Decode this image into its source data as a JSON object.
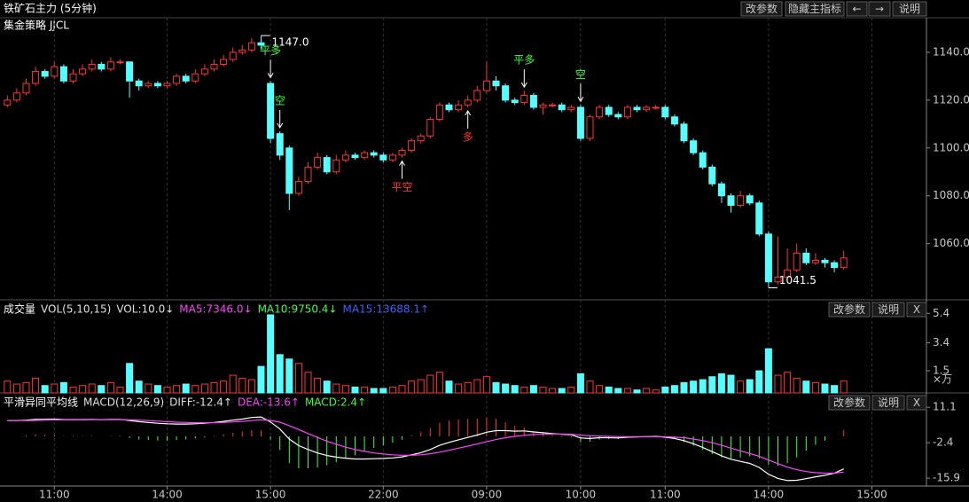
{
  "toolbar": [
    "改参数",
    "隐藏主指标",
    "←",
    "→",
    "说明"
  ],
  "chart_data": [
    {
      "type": "candlestick",
      "title": "铁矿石主力 (5分钟)",
      "subtitle": "集金策略 JJCL",
      "up_color": "#ff3232",
      "down_color": "#54ffff",
      "categories": [
        null,
        null,
        null,
        null,
        null,
        "11:00",
        null,
        null,
        null,
        null,
        null,
        null,
        null,
        null,
        null,
        null,
        null,
        "14:00",
        null,
        null,
        null,
        null,
        null,
        null,
        null,
        null,
        null,
        null,
        "15:00",
        null,
        null,
        null,
        null,
        null,
        null,
        null,
        null,
        null,
        null,
        null,
        "22:00",
        null,
        null,
        null,
        null,
        null,
        null,
        null,
        null,
        null,
        null,
        "09:00",
        null,
        null,
        null,
        null,
        null,
        null,
        null,
        null,
        null,
        "10:00",
        null,
        null,
        null,
        null,
        null,
        null,
        null,
        null,
        "11:00",
        null,
        null,
        null,
        null,
        null,
        null,
        null,
        null,
        null,
        null,
        "14:00",
        null,
        null,
        null,
        null,
        null,
        null,
        null,
        null,
        null,
        null,
        "15:00"
      ],
      "open": [
        1118,
        1120,
        1123,
        1127,
        1132,
        1130,
        1134,
        1128,
        1131,
        1133,
        1135,
        1133,
        1136,
        1136,
        1128,
        1126,
        1127,
        1126,
        1127,
        1130,
        1128,
        1131,
        1133,
        1135,
        1137,
        1140,
        1141,
        1144,
        1127,
        1106,
        1100,
        1081,
        1086,
        1092,
        1096,
        1090,
        1095,
        1097,
        1096,
        1098,
        1097,
        1095,
        1097,
        1099,
        1103,
        1105,
        1112,
        1118,
        1116,
        1118,
        1120,
        1124,
        1128,
        1126,
        1120,
        1119,
        1122,
        1117,
        1118,
        1118,
        1116,
        1117,
        1104,
        1113,
        1117,
        1114,
        1113,
        1117,
        1116,
        1117,
        1117,
        1113,
        1110,
        1103,
        1098,
        1092,
        1085,
        1080,
        1076,
        1080,
        1077,
        1064,
        1044,
        1046,
        1049,
        1056,
        1052,
        1053,
        1052,
        1050,
        null,
        null,
        null
      ],
      "close": [
        1120,
        1123,
        1127,
        1132,
        1130,
        1134,
        1128,
        1131,
        1133,
        1135,
        1133,
        1136,
        1136,
        1128,
        1126,
        1127,
        1126,
        1127,
        1130,
        1128,
        1131,
        1133,
        1135,
        1137,
        1140,
        1141,
        1144,
        1143,
        1104,
        1097,
        1081,
        1086,
        1092,
        1096,
        1090,
        1095,
        1097,
        1096,
        1098,
        1097,
        1095,
        1097,
        1099,
        1103,
        1105,
        1112,
        1118,
        1116,
        1118,
        1120,
        1124,
        1128,
        1126,
        1120,
        1119,
        1122,
        1117,
        1118,
        1118,
        1116,
        1117,
        1104,
        1113,
        1117,
        1114,
        1113,
        1117,
        1116,
        1117,
        1117,
        1113,
        1110,
        1103,
        1098,
        1092,
        1085,
        1080,
        1076,
        1080,
        1077,
        1064,
        1044,
        1046,
        1049,
        1056,
        1052,
        1053,
        1052,
        1050,
        1054,
        null,
        null,
        null
      ],
      "high": [
        1122,
        1125,
        1129,
        1134,
        1133,
        1136,
        1135,
        1133,
        1135,
        1137,
        1136,
        1138,
        1137,
        1136,
        1129,
        1128,
        1128,
        1128,
        1131,
        1131,
        1133,
        1135,
        1137,
        1139,
        1142,
        1143,
        1146,
        1147,
        1128,
        1107,
        1101,
        1088,
        1094,
        1098,
        1097,
        1097,
        1099,
        1098,
        1099,
        1099,
        1098,
        1098,
        1100,
        1104,
        1106,
        1113,
        1119,
        1119,
        1120,
        1122,
        1126,
        1136,
        1130,
        1127,
        1121,
        1124,
        1123,
        1119,
        1119,
        1119,
        1118,
        1118,
        1114,
        1118,
        1118,
        1115,
        1118,
        1118,
        1118,
        1118,
        1118,
        1114,
        1111,
        1104,
        1099,
        1093,
        1086,
        1081,
        1082,
        1081,
        1078,
        1065,
        1063,
        1058,
        1060,
        1058,
        1056,
        1054,
        1053,
        1057,
        null,
        null,
        null
      ],
      "low": [
        1117,
        1119,
        1122,
        1126,
        1129,
        1129,
        1127,
        1127,
        1130,
        1132,
        1132,
        1132,
        1135,
        1121,
        1124,
        1125,
        1125,
        1125,
        1126,
        1127,
        1127,
        1130,
        1132,
        1134,
        1136,
        1139,
        1140,
        1141,
        1102,
        1095,
        1074,
        1080,
        1085,
        1091,
        1089,
        1089,
        1094,
        1095,
        1095,
        1096,
        1094,
        1094,
        1096,
        1098,
        1102,
        1104,
        1111,
        1115,
        1115,
        1117,
        1119,
        1123,
        1124,
        1119,
        1118,
        1118,
        1116,
        1114,
        1117,
        1115,
        1115,
        1103,
        1103,
        1112,
        1113,
        1112,
        1112,
        1115,
        1115,
        1116,
        1112,
        1109,
        1102,
        1097,
        1091,
        1084,
        1077,
        1073,
        1075,
        1076,
        1063,
        1041.5,
        1043,
        1045,
        1048,
        1051,
        1051,
        1050,
        1048,
        1049,
        null,
        null,
        null
      ],
      "ylim": [
        1036.5,
        1151.5
      ],
      "yticks": [
        {
          "value": 1060,
          "label": "1060.0"
        },
        {
          "value": 1080,
          "label": "1080.0"
        },
        {
          "value": 1100,
          "label": "1100.0"
        },
        {
          "value": 1120,
          "label": "1120.0"
        },
        {
          "value": 1140,
          "label": "1140.0"
        }
      ],
      "annotations": [
        {
          "index": 27,
          "value": 1147,
          "label": "1147.0"
        },
        {
          "index": 81,
          "value": 1041.5,
          "label": "1041.5"
        }
      ],
      "signals": [
        {
          "label": "平多",
          "index": 28,
          "color": "#3cff3c",
          "arrow": "down"
        },
        {
          "label": "空",
          "index": 29,
          "color": "#3cff3c",
          "arrow": "down"
        },
        {
          "label": "平空",
          "index": 42,
          "color": "#ff3232",
          "arrow": "up"
        },
        {
          "label": "多",
          "index": 49,
          "color": "#ff3232",
          "arrow": "up"
        },
        {
          "label": "平多",
          "index": 55,
          "color": "#3cff3c",
          "arrow": "down"
        },
        {
          "label": "空",
          "index": 61,
          "color": "#3cff3c",
          "arrow": "down"
        }
      ]
    },
    {
      "type": "bar",
      "title": "成交量",
      "indicators": [
        {
          "label": "VOL(5,10,15)",
          "color": "#e0e0e0"
        },
        {
          "label": "VOL:10.0↓",
          "color": "#e0e0e0"
        },
        {
          "label": "MA5:7346.0↓",
          "color": "#ff40ff"
        },
        {
          "label": "MA10:9750.4↓",
          "color": "#3cff3c"
        },
        {
          "label": "MA15:13688.1↑",
          "color": "#4060ff"
        }
      ],
      "buttons": [
        "改参数",
        "说明",
        "X"
      ],
      "unit": "×万",
      "values": [
        0.8,
        0.6,
        0.7,
        1.0,
        0.5,
        0.6,
        0.7,
        0.4,
        0.5,
        0.6,
        0.5,
        0.7,
        0.4,
        2.0,
        0.8,
        0.6,
        0.5,
        0.4,
        0.5,
        0.6,
        0.5,
        0.6,
        0.7,
        0.8,
        1.2,
        1.0,
        0.9,
        1.8,
        5.3,
        2.6,
        2.3,
        2.0,
        1.4,
        1.0,
        0.8,
        0.6,
        0.5,
        0.4,
        0.4,
        0.3,
        0.3,
        0.4,
        0.5,
        0.8,
        0.9,
        1.2,
        1.4,
        0.8,
        0.6,
        0.7,
        0.9,
        1.1,
        0.7,
        0.6,
        0.5,
        0.4,
        0.5,
        0.4,
        0.3,
        0.3,
        0.4,
        1.3,
        0.8,
        0.5,
        0.4,
        0.3,
        0.3,
        0.2,
        0.3,
        0.2,
        0.4,
        0.5,
        0.7,
        0.8,
        0.9,
        1.1,
        1.3,
        1.2,
        0.8,
        0.9,
        1.5,
        3.0,
        1.2,
        1.4,
        1.0,
        0.8,
        0.7,
        0.6,
        0.5,
        0.8,
        null,
        null,
        null
      ],
      "ylim": [
        0,
        5.9
      ],
      "yticks": [
        1.5,
        3.4,
        5.4
      ]
    },
    {
      "type": "macd",
      "title": "平滑异同平均线",
      "indicators": [
        {
          "label": "MACD(12,26,9)",
          "color": "#e0e0e0"
        },
        {
          "label": "DIFF:-12.4↑",
          "color": "#e0e0e0"
        },
        {
          "label": "DEA:-13.6↑",
          "color": "#ff40ff"
        },
        {
          "label": "MACD:2.4↑",
          "color": "#3cff3c"
        }
      ],
      "buttons": [
        "改参数",
        "说明",
        "X"
      ],
      "up_color": "#ff3232",
      "down_color": "#3cff3c",
      "values": [
        0,
        0,
        0.4,
        0.8,
        0.6,
        0.6,
        0.2,
        0.2,
        0.2,
        0.2,
        0,
        0.2,
        0.2,
        -0.6,
        -1.2,
        -1.4,
        -1.6,
        -1.6,
        -1.4,
        -1.2,
        -0.8,
        -0.4,
        0.2,
        0.8,
        1.4,
        1.8,
        2.4,
        2.2,
        -1.2,
        -5.2,
        -10.2,
        -12.2,
        -12.2,
        -11.8,
        -11,
        -9.8,
        -8.4,
        -7.2,
        -5.8,
        -4.4,
        -3.4,
        -2.4,
        -1.2,
        0.4,
        1.6,
        3.2,
        5.2,
        6,
        6.4,
        6.6,
        6.8,
        7.2,
        6.8,
        5.4,
        4,
        3.4,
        2,
        1.2,
        0.4,
        -0.2,
        -0.4,
        -2.2,
        -2,
        -1.2,
        -1,
        -1,
        -0.4,
        -0.2,
        0,
        0.2,
        -0.4,
        -1,
        -2.2,
        -3.6,
        -5.2,
        -6.8,
        -8,
        -8.4,
        -8,
        -7.6,
        -8.4,
        -10.8,
        -11.2,
        -10.2,
        -8,
        -5.4,
        -3.2,
        -1.6,
        0,
        2.4,
        null,
        null,
        null
      ],
      "series": [
        {
          "color": "#ffffff",
          "values": [
            6,
            6,
            6.2,
            6.5,
            6.5,
            6.6,
            6.4,
            6.4,
            6.4,
            6.5,
            6.4,
            6.5,
            6.5,
            6,
            5.6,
            5.3,
            5,
            4.8,
            4.7,
            4.7,
            4.8,
            5,
            5.3,
            5.7,
            6.2,
            6.6,
            7.2,
            7.4,
            5.5,
            2.8,
            -1,
            -3.5,
            -5,
            -6.3,
            -7.3,
            -7.9,
            -8.3,
            -8.6,
            -8.6,
            -8.5,
            -8.4,
            -8.2,
            -7.8,
            -7,
            -6.2,
            -5,
            -3.4,
            -2.3,
            -1.3,
            -0.4,
            0.5,
            1.6,
            2.2,
            2.2,
            2,
            2.1,
            1.7,
            1.4,
            1.1,
            0.8,
            0.6,
            -0.6,
            -0.8,
            -0.5,
            -0.5,
            -0.6,
            -0.3,
            -0.2,
            -0.1,
            0,
            -0.3,
            -0.8,
            -1.6,
            -2.8,
            -4.2,
            -5.8,
            -7.4,
            -8.7,
            -9.5,
            -10.3,
            -11.8,
            -14.4,
            -16,
            -16.8,
            -16.7,
            -16.1,
            -15.4,
            -14.8,
            -14,
            -12.4,
            null,
            null,
            null
          ]
        },
        {
          "color": "#ff40ff",
          "values": [
            6,
            6,
            6,
            6.1,
            6.2,
            6.3,
            6.3,
            6.3,
            6.3,
            6.4,
            6.4,
            6.4,
            6.4,
            6.3,
            6.2,
            6,
            5.8,
            5.6,
            5.4,
            5.3,
            5.2,
            5.2,
            5.2,
            5.3,
            5.5,
            5.7,
            6,
            6.3,
            6.1,
            5.4,
            4.1,
            2.6,
            1.1,
            -0.4,
            -1.8,
            -3,
            -4.1,
            -5,
            -5.7,
            -6.3,
            -6.7,
            -7,
            -7.2,
            -7.2,
            -7,
            -6.6,
            -6,
            -5.3,
            -4.5,
            -3.7,
            -2.9,
            -2,
            -1.2,
            -0.5,
            0,
            0.4,
            0.7,
            0.8,
            0.9,
            0.9,
            0.8,
            0.5,
            0.2,
            0.1,
            0,
            -0.1,
            -0.1,
            -0.1,
            -0.1,
            -0.1,
            -0.1,
            -0.3,
            -0.5,
            -1,
            -1.6,
            -2.4,
            -3.4,
            -4.5,
            -5.5,
            -6.5,
            -7.6,
            -9,
            -10.4,
            -11.7,
            -12.7,
            -13.4,
            -13.8,
            -14,
            -14,
            -13.6,
            null,
            null,
            null
          ]
        }
      ],
      "ylim": [
        -18.9,
        15.2
      ],
      "yticks": [
        -15.9,
        -2.4,
        11.1
      ]
    }
  ]
}
